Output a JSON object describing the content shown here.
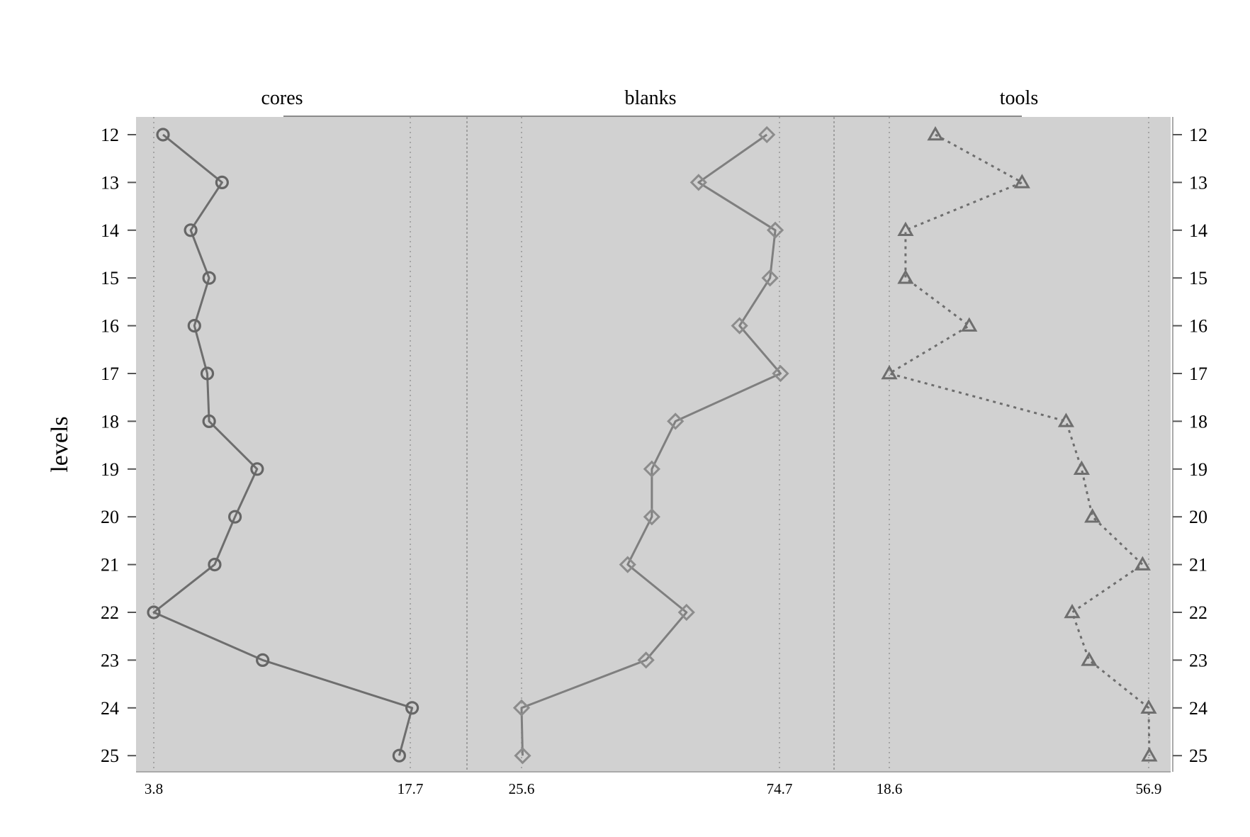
{
  "chart_data": {
    "type": "line",
    "ylabel": "levels",
    "y": [
      12,
      13,
      14,
      15,
      16,
      17,
      18,
      19,
      20,
      21,
      22,
      23,
      24,
      25
    ],
    "panels": [
      {
        "name": "cores",
        "xlim": [
          3.8,
          17.7
        ],
        "xticks": [
          "3.8",
          "17.7"
        ],
        "marker": "circle",
        "line_style": "solid",
        "color": "#6e6e6e",
        "values": [
          4.3,
          7.5,
          5.8,
          6.8,
          6.0,
          6.7,
          6.8,
          9.4,
          8.2,
          7.1,
          3.8,
          9.7,
          17.8,
          17.1
        ]
      },
      {
        "name": "blanks",
        "xlim": [
          25.6,
          74.7
        ],
        "xticks": [
          "25.6",
          "74.7"
        ],
        "marker": "diamond",
        "line_style": "solid",
        "color": "#7f7f7f",
        "values": [
          72.3,
          59.3,
          73.9,
          72.9,
          67.1,
          74.9,
          54.9,
          50.4,
          50.4,
          45.8,
          57.0,
          49.3,
          25.6,
          25.8
        ]
      },
      {
        "name": "tools",
        "xlim": [
          18.6,
          56.9
        ],
        "xticks": [
          "18.6",
          "56.9"
        ],
        "marker": "triangle",
        "line_style": "dotted",
        "color": "#6e6e6e",
        "values": [
          25.4,
          38.2,
          21.0,
          21.0,
          30.4,
          18.6,
          44.7,
          47.0,
          48.6,
          56.0,
          45.6,
          48.1,
          56.9,
          57.0
        ]
      }
    ]
  }
}
